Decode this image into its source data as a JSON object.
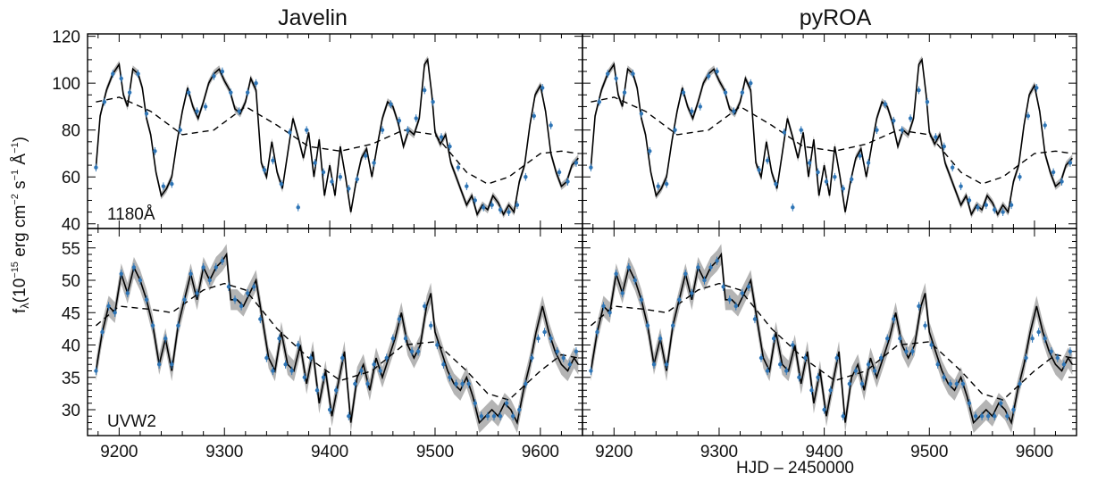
{
  "chart_data": {
    "type": "line",
    "column_titles": [
      "Javelin",
      "pyROA"
    ],
    "xlabel": "HJD – 2450000",
    "ylabel": "f",
    "ylabel_subscript": "λ",
    "ylabel_units": "(10",
    "ylabel_exp1": "−15",
    "ylabel_mid1": " erg cm",
    "ylabel_exp2": "−2",
    "ylabel_mid2": " s",
    "ylabel_exp3": "−1",
    "ylabel_mid3": " Å",
    "ylabel_exp4": "−1",
    "ylabel_close": ")",
    "xlim": [
      9170,
      9640
    ],
    "xticks": [
      9200,
      9300,
      9400,
      9500,
      9600
    ],
    "colors": {
      "data": "#2e75b6",
      "model": "#000000",
      "band": "#b4b4b4",
      "trend": "#000000"
    },
    "rows": [
      {
        "label": "1180Å",
        "ylim": [
          38,
          121
        ],
        "yticks": [
          40,
          60,
          80,
          100,
          120
        ],
        "trend": {
          "x": [
            9178,
            9200,
            9230,
            9260,
            9290,
            9320,
            9350,
            9380,
            9410,
            9440,
            9470,
            9500,
            9530,
            9550,
            9570,
            9600,
            9620,
            9636
          ],
          "y": [
            92,
            94,
            88,
            78,
            80,
            90,
            82,
            73,
            71,
            74,
            80,
            78,
            62,
            57,
            60,
            70,
            71,
            70
          ]
        },
        "model": {
          "x": [
            9178,
            9182,
            9188,
            9194,
            9200,
            9204,
            9208,
            9213,
            9218,
            9222,
            9226,
            9230,
            9235,
            9240,
            9245,
            9250,
            9255,
            9260,
            9265,
            9270,
            9275,
            9280,
            9285,
            9290,
            9295,
            9300,
            9305,
            9310,
            9315,
            9320,
            9325,
            9330,
            9335,
            9340,
            9345,
            9350,
            9355,
            9360,
            9365,
            9370,
            9375,
            9380,
            9385,
            9390,
            9395,
            9400,
            9405,
            9410,
            9415,
            9420,
            9425,
            9430,
            9435,
            9440,
            9445,
            9450,
            9455,
            9460,
            9465,
            9470,
            9475,
            9480,
            9485,
            9490,
            9493,
            9497,
            9500,
            9505,
            9510,
            9515,
            9520,
            9525,
            9530,
            9535,
            9540,
            9545,
            9550,
            9555,
            9560,
            9565,
            9570,
            9575,
            9580,
            9585,
            9590,
            9595,
            9600,
            9605,
            9610,
            9615,
            9620,
            9625,
            9630,
            9636
          ],
          "y": [
            64,
            86,
            97,
            104,
            108,
            95,
            90,
            106,
            104,
            98,
            85,
            78,
            62,
            52,
            55,
            60,
            75,
            88,
            98,
            90,
            85,
            92,
            100,
            104,
            106,
            101,
            97,
            89,
            87,
            92,
            102,
            97,
            66,
            60,
            75,
            62,
            55,
            70,
            85,
            77,
            68,
            79,
            60,
            76,
            52,
            65,
            52,
            73,
            60,
            45,
            58,
            68,
            72,
            60,
            73,
            85,
            92,
            90,
            83,
            73,
            80,
            78,
            85,
            108,
            110,
            95,
            79,
            74,
            78,
            66,
            60,
            54,
            48,
            52,
            44,
            48,
            46,
            52,
            49,
            44,
            48,
            45,
            58,
            65,
            82,
            95,
            99,
            88,
            70,
            62,
            56,
            58,
            65,
            68
          ]
        },
        "data": {
          "x": [
            9178,
            9186,
            9194,
            9202,
            9210,
            9218,
            9226,
            9234,
            9242,
            9250,
            9258,
            9266,
            9274,
            9282,
            9290,
            9298,
            9306,
            9314,
            9322,
            9330,
            9338,
            9346,
            9354,
            9362,
            9370,
            9378,
            9386,
            9394,
            9402,
            9410,
            9418,
            9426,
            9434,
            9442,
            9450,
            9458,
            9466,
            9474,
            9482,
            9490,
            9498,
            9506,
            9514,
            9522,
            9530,
            9538,
            9546,
            9554,
            9562,
            9570,
            9578,
            9586,
            9594,
            9602,
            9610,
            9618,
            9626,
            9634
          ],
          "y": [
            64,
            92,
            104,
            102,
            96,
            104,
            87,
            71,
            56,
            57,
            80,
            96,
            88,
            90,
            103,
            105,
            96,
            88,
            96,
            100,
            63,
            67,
            57,
            79,
            47,
            80,
            66,
            62,
            58,
            60,
            55,
            59,
            69,
            66,
            80,
            91,
            84,
            80,
            85,
            97,
            92,
            77,
            73,
            64,
            56,
            50,
            47,
            48,
            46,
            45,
            48,
            60,
            86,
            98,
            82,
            62,
            58,
            66
          ]
        }
      },
      {
        "label": "UVW2",
        "ylim": [
          26,
          58
        ],
        "yticks": [
          30,
          35,
          40,
          45,
          50,
          55
        ],
        "trend": {
          "x": [
            9178,
            9200,
            9230,
            9250,
            9280,
            9300,
            9320,
            9350,
            9380,
            9410,
            9440,
            9470,
            9500,
            9530,
            9550,
            9570,
            9600,
            9620,
            9636
          ],
          "y": [
            43,
            46,
            45.5,
            45,
            48.5,
            49.5,
            48.5,
            42.5,
            38,
            34.5,
            36,
            40,
            40.5,
            36,
            32.5,
            31.5,
            36,
            38.5,
            38
          ]
        },
        "model": {
          "x": [
            9178,
            9184,
            9190,
            9196,
            9202,
            9208,
            9214,
            9220,
            9226,
            9232,
            9238,
            9244,
            9250,
            9256,
            9262,
            9268,
            9274,
            9280,
            9286,
            9292,
            9298,
            9302,
            9306,
            9312,
            9318,
            9324,
            9330,
            9336,
            9342,
            9348,
            9354,
            9360,
            9366,
            9372,
            9378,
            9384,
            9390,
            9396,
            9402,
            9408,
            9414,
            9420,
            9426,
            9432,
            9438,
            9444,
            9450,
            9456,
            9462,
            9468,
            9474,
            9480,
            9486,
            9492,
            9496,
            9500,
            9506,
            9512,
            9518,
            9524,
            9530,
            9536,
            9542,
            9548,
            9554,
            9560,
            9566,
            9572,
            9578,
            9584,
            9590,
            9596,
            9602,
            9608,
            9614,
            9620,
            9626,
            9632,
            9636
          ],
          "y": [
            36,
            42,
            46,
            45,
            51,
            48,
            52,
            50,
            47,
            43,
            37,
            41,
            36,
            43,
            47,
            51,
            47,
            52,
            50,
            52,
            53,
            54,
            47,
            47,
            46,
            48,
            50,
            44,
            38,
            36,
            42,
            37,
            36,
            40,
            34,
            39,
            31,
            36,
            29,
            34,
            39,
            28,
            35,
            37,
            33,
            38,
            35,
            38,
            41,
            45,
            40,
            38,
            40,
            46,
            48,
            42,
            39,
            36,
            34,
            33,
            35,
            32,
            28,
            29,
            30,
            29,
            31,
            30,
            28,
            33,
            37,
            42,
            46,
            42,
            39,
            37,
            36,
            38,
            37
          ]
        },
        "data": {
          "x": [
            9178,
            9184,
            9190,
            9196,
            9202,
            9208,
            9214,
            9220,
            9226,
            9232,
            9238,
            9244,
            9250,
            9256,
            9262,
            9268,
            9274,
            9280,
            9286,
            9292,
            9298,
            9304,
            9310,
            9316,
            9322,
            9328,
            9334,
            9340,
            9346,
            9352,
            9358,
            9364,
            9370,
            9376,
            9382,
            9388,
            9394,
            9400,
            9406,
            9412,
            9418,
            9424,
            9430,
            9436,
            9442,
            9448,
            9454,
            9460,
            9466,
            9472,
            9478,
            9484,
            9490,
            9496,
            9502,
            9508,
            9514,
            9520,
            9526,
            9532,
            9538,
            9544,
            9550,
            9556,
            9562,
            9568,
            9574,
            9580,
            9586,
            9592,
            9598,
            9604,
            9610,
            9616,
            9622,
            9628,
            9634
          ],
          "y": [
            36,
            42,
            46,
            45,
            51,
            48,
            52,
            50,
            47,
            43,
            37,
            41,
            37,
            43,
            47,
            51,
            48,
            52,
            50,
            52,
            53,
            49,
            47,
            46,
            48,
            49,
            44,
            38,
            36,
            41,
            37,
            36,
            40,
            35,
            38,
            33,
            35,
            30,
            33,
            38,
            29,
            34,
            36,
            34,
            37,
            36,
            38,
            41,
            44,
            41,
            39,
            39,
            46,
            43,
            40,
            37,
            35,
            34,
            34,
            34,
            31,
            29,
            29,
            29,
            29,
            31,
            29,
            30,
            34,
            38,
            41,
            42,
            41,
            39,
            38,
            37,
            39
          ]
        }
      }
    ]
  }
}
